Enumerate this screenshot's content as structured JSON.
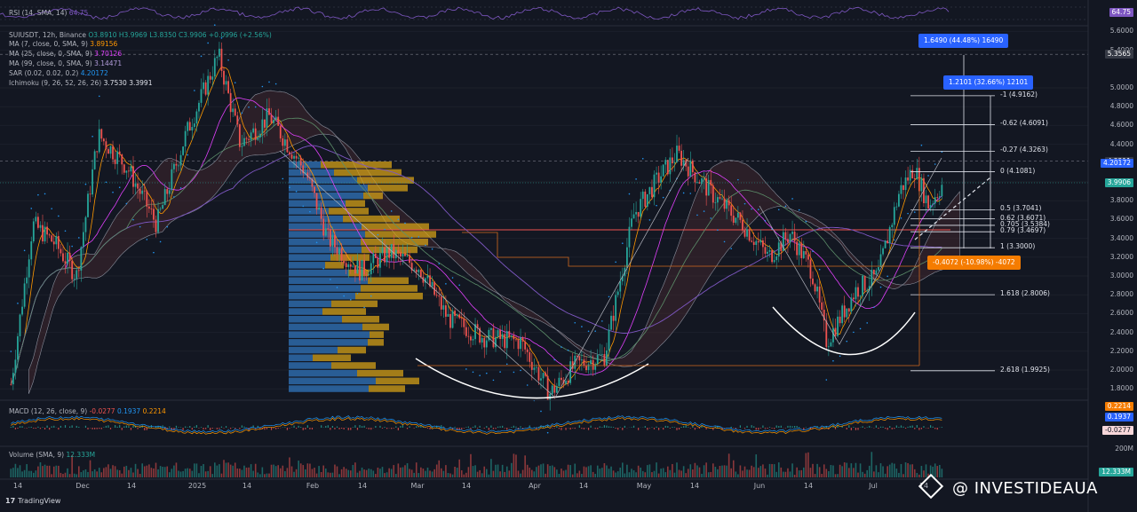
{
  "chart_data": {
    "type": "candlestick",
    "title": "SUIUSDT, 12h, Binance",
    "ohlc": {
      "o": "O3.8910",
      "h": "H3.9969",
      "l": "L3.8350",
      "c": "C3.9906",
      "chg": "+0.0996 (+2.56%)"
    },
    "x_ticks": [
      "14",
      "Dec",
      "14",
      "2025",
      "14",
      "Feb",
      "14",
      "Mar",
      "14",
      "Apr",
      "14",
      "May",
      "14",
      "Jun",
      "14",
      "Jul",
      "14"
    ],
    "y_ticks": [
      "5.6000",
      "5.4000",
      "5.0000",
      "4.8000",
      "4.6000",
      "4.4000",
      "4.0000",
      "3.8000",
      "3.6000",
      "3.4000",
      "3.2000",
      "3.0000",
      "2.8000",
      "2.6000",
      "2.4000",
      "2.2000",
      "2.0000",
      "1.8000"
    ],
    "price_path": [
      [
        "2024-11-10",
        1.85
      ],
      [
        "2024-11-16",
        3.55
      ],
      [
        "2024-11-22",
        3.35
      ],
      [
        "2024-11-28",
        3.0
      ],
      [
        "2024-12-04",
        4.5
      ],
      [
        "2024-12-12",
        4.15
      ],
      [
        "2024-12-20",
        3.55
      ],
      [
        "2024-12-28",
        4.5
      ],
      [
        "2025-01-06",
        5.35
      ],
      [
        "2025-01-12",
        4.4
      ],
      [
        "2025-01-20",
        4.7
      ],
      [
        "2025-01-30",
        4.1
      ],
      [
        "2025-02-05",
        3.4
      ],
      [
        "2025-02-14",
        3.05
      ],
      [
        "2025-02-22",
        3.25
      ],
      [
        "2025-03-02",
        3.1
      ],
      [
        "2025-03-10",
        2.55
      ],
      [
        "2025-03-20",
        2.35
      ],
      [
        "2025-03-30",
        2.3
      ],
      [
        "2025-04-07",
        1.75
      ],
      [
        "2025-04-14",
        2.05
      ],
      [
        "2025-04-22",
        2.15
      ],
      [
        "2025-04-30",
        3.65
      ],
      [
        "2025-05-07",
        4.05
      ],
      [
        "2025-05-12",
        4.3
      ],
      [
        "2025-05-22",
        3.85
      ],
      [
        "2025-05-30",
        3.55
      ],
      [
        "2025-06-06",
        3.2
      ],
      [
        "2025-06-12",
        3.45
      ],
      [
        "2025-06-18",
        3.05
      ],
      [
        "2025-06-22",
        2.3
      ],
      [
        "2025-06-30",
        2.85
      ],
      [
        "2025-07-06",
        3.0
      ],
      [
        "2025-07-12",
        3.9
      ],
      [
        "2025-07-16",
        4.15
      ],
      [
        "2025-07-20",
        3.75
      ],
      [
        "2025-07-24",
        3.99
      ]
    ],
    "last_price": 3.9906,
    "fib_levels": [
      {
        "label": "-1 (4.9162)",
        "value": 4.9162
      },
      {
        "label": "-0.62 (4.6091)",
        "value": 4.6091
      },
      {
        "label": "-0.27 (4.3263)",
        "value": 4.3263
      },
      {
        "label": "0 (4.1081)",
        "value": 4.1081
      },
      {
        "label": "0.5 (3.7041)",
        "value": 3.7041
      },
      {
        "label": "0.62 (3.6071)",
        "value": 3.6071
      },
      {
        "label": "0.705 (3.5384)",
        "value": 3.5384
      },
      {
        "label": "0.79 (3.4697)",
        "value": 3.4697
      },
      {
        "label": "1 (3.3000)",
        "value": 3.3
      },
      {
        "label": "1.618 (2.8006)",
        "value": 2.8006
      },
      {
        "label": "2.618 (1.9925)",
        "value": 1.9925
      }
    ],
    "measures": [
      {
        "label": "1.6490 (44.48%) 16490",
        "color": "#2962ff"
      },
      {
        "label": "1.2101 (32.66%) 12101",
        "color": "#2962ff"
      },
      {
        "label": "-0.4072 (-10.98%) -4072",
        "color": "#f57c00"
      }
    ],
    "price_tags": [
      {
        "text": "5.3565",
        "value": 5.3565,
        "color": "#363a45"
      },
      {
        "text": "4.2211",
        "value": 4.2211,
        "color": "#363a45"
      },
      {
        "text": "4.20172",
        "value": 4.20172,
        "color": "#2962ff"
      },
      {
        "text": "3.9906",
        "value": 3.9906,
        "color": "#26a69a"
      }
    ]
  },
  "indicators": {
    "rsi": {
      "label": "RSI (14, SMA, 14)",
      "value": "64.75",
      "color": "#7e57c2"
    },
    "ma7": {
      "label": "MA (7, close, 0, SMA, 9)",
      "value": "3.89156",
      "color": "#ff9800"
    },
    "ma25": {
      "label": "MA (25, close, 0, SMA, 9)",
      "value": "3.70126",
      "color": "#e040fb"
    },
    "ma99": {
      "label": "MA (99, close, 0, SMA, 9)",
      "value": "3.14471",
      "color": "#7e57c2"
    },
    "sar": {
      "label": "SAR (0.02, 0.02, 0.2)",
      "value": "4.20172",
      "color": "#2196f3"
    },
    "ichimoku": {
      "label": "Ichimoku (9, 26, 52, 26, 26)",
      "v1": "3.7530",
      "v2": "3.3991",
      "color": "#e0e3eb"
    },
    "macd": {
      "label": "MACD (12, 26, close, 9)",
      "v1": "-0.0277",
      "v2": "0.1937",
      "v3": "0.2214",
      "tags": [
        "0.2214",
        "0.1937",
        "-0.0277"
      ]
    },
    "volume": {
      "label": "Volume (SMA, 9)",
      "value": "12.333M",
      "tag": "12.333M",
      "scale": "200M"
    }
  },
  "branding": {
    "platform": "TradingView",
    "watermark": "@ INVESTIDEAUA"
  },
  "colors": {
    "up": "#26a69a",
    "down": "#ef5350",
    "bg": "#131722",
    "grid": "#1e222d",
    "vp_blue": "#2f6fb3",
    "vp_gold": "#d4a017"
  }
}
